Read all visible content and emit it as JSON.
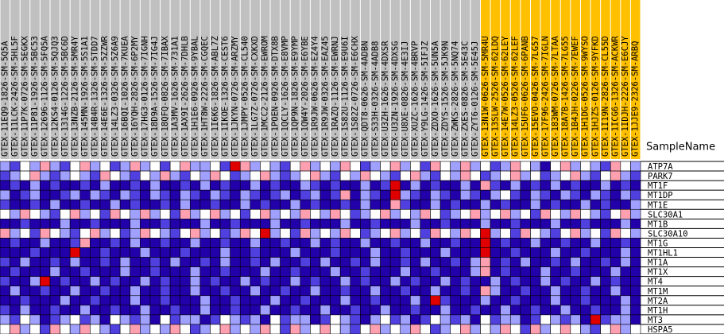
{
  "heatmap": {
    "row_header": "SampleName",
    "groups": [
      {
        "color": "#c0c0c0",
        "samples": [
          "GTEX-11EQ9-1826-SM-5Q5A",
          "GTEX-11LCK-2426-SM-5HL5F",
          "GTEX-11P7K-0726-SM-5EGKX",
          "GTEX-11P81-1926-SM-5BC53",
          "GTEX-12696-1126-SM-5FQ5A",
          "GTEX-12KS4-0126-SM-5QJQ3",
          "GTEX-1314G-1226-SM-5BC6D",
          "GTEX-13NZB-2126-SM-5MR4Y",
          "GTEX-145MN-1926-SM-5S1A1",
          "GTEX-14B4R-1326-SM-5TDD7",
          "GTEX-14E6E-1326-SM-5ZZWR",
          "GTEX-14LZ3-0326-SM-5Z6A9",
          "GTEX-16BQI-1026-SM-7KUEA",
          "GTEX-16YQH-2826-SM-6P2MY",
          "GTEX-17HG3-0126-SM-7IGNH",
          "GTEX-18D9A-1526-SM-7IG4J",
          "GTEX-18QFQ-0826-SM-7IBAX",
          "GTEX-1A3MV-1626-SM-731A1",
          "GTEX-1AX9I-2626-SM-7DHLB",
          "GTEX-1H1E6-0926-SM-9YBAL",
          "GTEX-1HT8W-2226-SM-CGQEC",
          "GTEX-1I6K6-1826-SM-ABL7Z",
          "GTEX-1IKOE-1326-SM-CEST6",
          "GTEX-1JKYN-0726-SM-ARZMY",
          "GTEX-1JMPY-0526-SM-CL540",
          "GTEX-1LG7Z-0726-SM-CXKXD",
          "GTEX-1MCC2-2126-SM-EWROM",
          "GTEX-1POEN-0926-SM-DTX8B",
          "GTEX-1QCLY-1626-SM-E8VMP",
          "GTEX-1QP9N-1826-SM-E9YMP",
          "GTEX-1QW4Y-2026-SM-E6YBE",
          "GTEX-1R9JW-0626-SM-EZ4Y4",
          "GTEX-1R9JW-0326-SM-EAZ45",
          "GTEX-1RAZQ-1126-SM-EWRNJ",
          "GTEX-1S82U-1126-SM-E9U6I",
          "GTEX-1S82Z-0726-SM-E6CHX",
          "GTEX-QDT8-0626-SM-4ADBN",
          "GTEX-S33H-0326-SM-4ADB8",
          "GTEX-U3ZH-1626-SM-4DXSR",
          "GTEX-U3ZN-1926-SM-4DXSG",
          "GTEX-U8XE-0826-SM-4E3IJ",
          "GTEX-XUZC-1626-SM-4BRVP",
          "GTEX-Y9LG-1426-SM-5IFJZ",
          "GTEX-ZDXO-1626-SM-5UN5A",
          "GTEX-ZDYS-1526-SM-5JK9N",
          "GTEX-ZWKS-2826-SM-5NQ74",
          "GTEX-ZXES-0826-SM-5E43C",
          "GTEX-ZYT6-0126-SM-5E45J"
        ]
      },
      {
        "color": "#ffc000",
        "samples": [
          "GTEX-13N1W-0626-SM-5MR4U",
          "GTEX-13SLW-2526-SM-62LDQ",
          "GTEX-14E7W-0526-SM-62LEY",
          "GTEX-14LZ3-0526-SM-62LEF",
          "GTEX-15UF6-0626-SM-6PANB",
          "GTEX-15EVO-0426-SM-7LG57",
          "GTEX-17F96-2426-SM-7IGLN",
          "GTEX-183WM-0726-SM-7LTAA",
          "GTEX-18A7B-1426-SM-7LG55",
          "GTEX-1B4JH-0226-SM-7EWEF",
          "GTEX-1H1DG-0526-SM-9WYSO",
          "GTEX-1HJZS-0126-SM-9YFKD",
          "GTEX-1I19N-2826-SM-CL55D",
          "GTEX-1ICG6-1326-SM-ACKWR",
          "GTEX-1IDJH-2226-SM-E6CJY",
          "GTEX-1JJE9-2326-SM-ARBQ"
        ]
      }
    ],
    "genes": [
      "ATP7A",
      "PARK7",
      "MT1F",
      "MT1DP",
      "MT1E",
      "SLC30A1",
      "MT1B",
      "SLC30A10",
      "MT1G",
      "MT1HL1",
      "MT1A",
      "MT1X",
      "MT4",
      "MT1M",
      "MT2A",
      "MT1H",
      "MT3",
      "HSPA5"
    ],
    "color_stops": [
      {
        "value": -3,
        "color": "#2200aa"
      },
      {
        "value": -2,
        "color": "#5040e0"
      },
      {
        "value": -1,
        "color": "#a0a0ff"
      },
      {
        "value": 0,
        "color": "#ffffff"
      },
      {
        "value": 1,
        "color": "#ffa0b0"
      },
      {
        "value": 2,
        "color": "#e00000"
      }
    ],
    "values": [
      [
        -1,
        -2,
        0,
        -1,
        1,
        -1,
        -2,
        0,
        1,
        -1,
        0,
        -2,
        -1,
        1,
        -1,
        0,
        -2,
        0,
        1,
        -1,
        -1,
        0,
        -2,
        2,
        1,
        -1,
        0,
        -1,
        -2,
        0,
        1,
        -1,
        0,
        -1,
        1,
        0,
        -2,
        -1,
        0,
        1,
        -1,
        0,
        -2,
        1,
        0,
        -1,
        1,
        -1,
        0,
        -2,
        -1,
        1,
        0,
        -1,
        -3,
        0,
        1,
        -1,
        0,
        -1,
        -2,
        1,
        0,
        -1
      ],
      [
        -2,
        -1,
        0,
        1,
        -1,
        -2,
        -1,
        0,
        -1,
        -2,
        1,
        0,
        -1,
        -2,
        0,
        -1,
        1,
        -1,
        -2,
        0,
        -1,
        1,
        0,
        -2,
        -1,
        0,
        1,
        -1,
        -2,
        -1,
        0,
        1,
        -1,
        -2,
        0,
        -1,
        1,
        0,
        -1,
        -2,
        0,
        1,
        -1,
        -2,
        0,
        -1,
        1,
        0,
        -2,
        -1,
        0,
        1,
        -1,
        0,
        -2,
        -1,
        0,
        1,
        -1,
        -2,
        0,
        1,
        -1,
        -2
      ],
      [
        -3,
        -2,
        -3,
        -1,
        -3,
        -2,
        -3,
        -3,
        -2,
        -3,
        -1,
        -3,
        -3,
        -2,
        -3,
        -1,
        -3,
        -3,
        -2,
        -3,
        -1,
        -3,
        -2,
        -3,
        -3,
        -1,
        -3,
        -2,
        -3,
        -3,
        -1,
        -2,
        -3,
        -2,
        -3,
        -3,
        -1,
        -3,
        -2,
        2,
        -3,
        -1,
        -3,
        -2,
        -3,
        -3,
        -1,
        -3,
        1,
        -2,
        -3,
        -1,
        -3,
        -2,
        -3,
        -1,
        -3,
        -2,
        -3,
        -3,
        -1,
        -3,
        -2,
        -3
      ],
      [
        -1,
        -3,
        -2,
        -1,
        -3,
        -3,
        -2,
        -1,
        -3,
        -1,
        -2,
        -3,
        -1,
        -2,
        -3,
        -1,
        -2,
        -3,
        -1,
        -2,
        -3,
        -1,
        -2,
        -3,
        -1,
        -2,
        -3,
        -2,
        -1,
        -3,
        -2,
        -1,
        -3,
        -2,
        1,
        -3,
        -1,
        -2,
        -3,
        2,
        -1,
        -2,
        -3,
        -1,
        -2,
        -3,
        -1,
        -2,
        -3,
        -1,
        0,
        -2,
        -3,
        -1,
        -2,
        -3,
        -1,
        -2,
        -3,
        -1,
        -2,
        -3,
        -1,
        -2
      ],
      [
        -2,
        -3,
        -3,
        -2,
        -3,
        -1,
        -3,
        -3,
        -2,
        -3,
        -3,
        -1,
        -3,
        -2,
        -3,
        -3,
        -2,
        -3,
        -1,
        -3,
        -3,
        -2,
        -3,
        -3,
        -1,
        -3,
        -2,
        -3,
        -3,
        -1,
        -3,
        -2,
        -3,
        -3,
        -2,
        -3,
        -1,
        -3,
        -3,
        1,
        -2,
        -3,
        -3,
        -1,
        -3,
        -2,
        -3,
        -3,
        -1,
        -3,
        -2,
        -3,
        -3,
        -1,
        -3,
        -2,
        -3,
        -3,
        -1,
        -3,
        -2,
        -3,
        -3,
        -1
      ],
      [
        0,
        -1,
        1,
        0,
        -1,
        -2,
        0,
        1,
        -1,
        0,
        -2,
        1,
        0,
        -1,
        1,
        -1,
        0,
        -2,
        1,
        -1,
        0,
        1,
        -1,
        0,
        -2,
        0,
        1,
        -1,
        0,
        -1,
        1,
        0,
        -1,
        1,
        0,
        -2,
        -1,
        0,
        1,
        -1,
        0,
        -1,
        1,
        0,
        -2,
        -1,
        0,
        1,
        -1,
        0,
        1,
        -1,
        0,
        -2,
        1,
        0,
        -1,
        1,
        0,
        -1,
        -2,
        0,
        1,
        -1
      ],
      [
        -3,
        -3,
        -2,
        -3,
        -3,
        -3,
        -1,
        -3,
        -3,
        -2,
        -3,
        -3,
        -3,
        -1,
        -3,
        -3,
        -2,
        -3,
        -3,
        -3,
        -1,
        -3,
        -3,
        -2,
        -3,
        -3,
        -3,
        -1,
        -3,
        -3,
        -2,
        -3,
        -3,
        -3,
        -1,
        -3,
        -3,
        -2,
        -3,
        -3,
        -3,
        -1,
        -3,
        -3,
        -2,
        -3,
        -3,
        -3,
        -1,
        -3,
        -3,
        -2,
        -3,
        -3,
        -3,
        -1,
        -3,
        -3,
        -2,
        -3,
        -3,
        -3,
        -1,
        -3
      ],
      [
        1,
        -1,
        0,
        -2,
        1,
        0,
        -1,
        -2,
        0,
        1,
        -1,
        0,
        -2,
        -1,
        1,
        0,
        -1,
        -2,
        0,
        1,
        -1,
        0,
        -2,
        -1,
        1,
        0,
        2,
        -1,
        0,
        -2,
        1,
        -1,
        0,
        -1,
        1,
        0,
        -2,
        -1,
        0,
        1,
        -1,
        0,
        -2,
        1,
        0,
        -1,
        1,
        0,
        2,
        -1,
        0,
        -2,
        1,
        0,
        -1,
        -2,
        0,
        1,
        -1,
        0,
        -2,
        1,
        0,
        -1
      ],
      [
        -3,
        -2,
        -3,
        -3,
        -1,
        -3,
        -3,
        -2,
        1,
        -3,
        -3,
        -2,
        -3,
        -1,
        -3,
        -3,
        -2,
        -3,
        -3,
        -1,
        -3,
        -3,
        -2,
        -3,
        -3,
        -1,
        -3,
        -3,
        -2,
        -3,
        -3,
        -1,
        -3,
        -2,
        -3,
        -3,
        -1,
        -3,
        -3,
        -2,
        -3,
        -3,
        -1,
        -3,
        -3,
        -2,
        -3,
        -3,
        2,
        -3,
        -2,
        -3,
        -3,
        -1,
        -3,
        -3,
        -2,
        -3,
        -3,
        -1,
        -3,
        -3,
        -2,
        -3
      ],
      [
        -3,
        -3,
        -3,
        -2,
        -3,
        -3,
        -3,
        2,
        -3,
        -3,
        -2,
        -3,
        -3,
        -3,
        -1,
        -3,
        -3,
        -3,
        -2,
        -3,
        -3,
        -3,
        -1,
        -3,
        -3,
        -2,
        -3,
        -3,
        -3,
        -1,
        -3,
        -3,
        -3,
        -2,
        -3,
        -3,
        -3,
        -1,
        -3,
        -3,
        -2,
        -3,
        -3,
        -3,
        -1,
        -3,
        -3,
        -3,
        2,
        -3,
        -3,
        -2,
        -3,
        -3,
        -3,
        -1,
        -3,
        -3,
        -2,
        -3,
        -3,
        -3,
        -1,
        -3
      ],
      [
        -2,
        -3,
        -1,
        -3,
        -3,
        -2,
        -3,
        -1,
        -3,
        -3,
        -2,
        -3,
        -1,
        -3,
        -3,
        -2,
        -3,
        -1,
        -3,
        -3,
        -2,
        -3,
        -1,
        -3,
        -3,
        -2,
        -3,
        -1,
        -3,
        -3,
        -2,
        -3,
        -1,
        -3,
        -3,
        -2,
        -3,
        -1,
        -3,
        -3,
        -2,
        -3,
        -1,
        -3,
        -3,
        -2,
        -3,
        -1,
        1,
        -3,
        -2,
        -3,
        -1,
        -3,
        -3,
        -2,
        -3,
        -1,
        -3,
        -3,
        -2,
        -3,
        -1,
        -3
      ],
      [
        -3,
        -2,
        -3,
        -3,
        -3,
        -1,
        -3,
        -3,
        -2,
        -3,
        -3,
        -3,
        -1,
        -3,
        -3,
        -2,
        -3,
        -3,
        -3,
        -1,
        -3,
        -3,
        -2,
        -3,
        -3,
        -3,
        -1,
        -3,
        -3,
        -2,
        -3,
        -3,
        -3,
        -1,
        -3,
        -3,
        -2,
        -3,
        -3,
        -3,
        -1,
        -3,
        -3,
        -2,
        -3,
        -3,
        -3,
        -1,
        1,
        -3,
        -2,
        -3,
        -3,
        -3,
        -1,
        -3,
        -3,
        -2,
        -3,
        -3,
        -3,
        -1,
        -3,
        -3
      ],
      [
        -2,
        -3,
        -3,
        -1,
        2,
        -3,
        -2,
        -3,
        -3,
        -1,
        -3,
        -2,
        -3,
        -3,
        -1,
        -3,
        -2,
        -3,
        -3,
        -1,
        -3,
        -2,
        -3,
        -3,
        -1,
        -3,
        -2,
        -3,
        -3,
        -1,
        -3,
        -2,
        -3,
        -3,
        -1,
        -3,
        -2,
        -3,
        -3,
        -1,
        -3,
        -2,
        -3,
        -3,
        -1,
        -3,
        -2,
        -3,
        -3,
        -1,
        -3,
        -2,
        -3,
        -3,
        -1,
        -3,
        -2,
        -3,
        -3,
        -1,
        -3,
        -2,
        -3,
        -3
      ],
      [
        -3,
        -1,
        -3,
        -3,
        -2,
        -3,
        -3,
        -1,
        -3,
        -3,
        -2,
        -3,
        -3,
        -1,
        -3,
        -3,
        -2,
        -3,
        -3,
        -1,
        -3,
        -3,
        -2,
        -3,
        -3,
        -1,
        -3,
        -3,
        -2,
        -3,
        -3,
        -1,
        -3,
        -3,
        -2,
        -3,
        -3,
        -1,
        -3,
        -3,
        -2,
        -3,
        -3,
        -1,
        -3,
        -3,
        -2,
        -3,
        1,
        -1,
        -3,
        -3,
        -2,
        -3,
        -3,
        -1,
        -3,
        -3,
        -2,
        -3,
        -3,
        -1,
        -3,
        -3
      ],
      [
        -3,
        -3,
        -2,
        -3,
        -3,
        -3,
        -1,
        -3,
        -3,
        -2,
        -3,
        -3,
        -3,
        -1,
        -3,
        -3,
        -2,
        -3,
        -3,
        -3,
        -1,
        -3,
        -3,
        -2,
        -3,
        -3,
        -3,
        -1,
        -3,
        -3,
        -2,
        -3,
        -3,
        -3,
        -1,
        -3,
        -3,
        -2,
        -3,
        -3,
        -3,
        -1,
        -3,
        2,
        -2,
        -3,
        -3,
        -3,
        -1,
        -3,
        -3,
        -2,
        -3,
        -3,
        -3,
        -1,
        -3,
        -3,
        -2,
        -3,
        -3,
        -3,
        -1,
        -3
      ],
      [
        -2,
        -3,
        -1,
        -3,
        -3,
        -2,
        -3,
        -3,
        -1,
        -3,
        -3,
        -2,
        -3,
        -3,
        -1,
        -3,
        -3,
        -2,
        -3,
        -3,
        -1,
        -3,
        -3,
        -2,
        -3,
        -3,
        -1,
        -3,
        -3,
        -2,
        -3,
        -3,
        -1,
        -3,
        -3,
        -2,
        -3,
        -3,
        -1,
        -3,
        -3,
        -2,
        -3,
        -3,
        -1,
        -3,
        -3,
        -2,
        -3,
        -3,
        -1,
        -3,
        -3,
        -2,
        -3,
        -3,
        -1,
        -3,
        -3,
        -2,
        -3,
        -3,
        -1,
        -3
      ],
      [
        -1,
        -2,
        0,
        -1,
        -3,
        -2,
        -1,
        0,
        -2,
        -1,
        -3,
        0,
        -1,
        -2,
        -1,
        -3,
        0,
        -2,
        -1,
        -1,
        -3,
        -2,
        0,
        -1,
        -2,
        -1,
        -3,
        0,
        -2,
        -1,
        -1,
        -3,
        -2,
        0,
        -1,
        -2,
        -3,
        -1,
        0,
        -2,
        -1,
        -3,
        -2,
        0,
        -1,
        -2,
        -1,
        -3,
        0,
        -2,
        -1,
        -1,
        -3,
        -2,
        0,
        -1,
        -2,
        -1,
        -3,
        2,
        -2,
        -1,
        -1,
        -3
      ],
      [
        0,
        1,
        -1,
        0,
        -2,
        1,
        0,
        -1,
        1,
        0,
        -1,
        -2,
        0,
        1,
        -1,
        0,
        -1,
        1,
        0,
        -2,
        -1,
        0,
        1,
        -1,
        0,
        -1,
        1,
        0,
        -2,
        1,
        -1,
        0,
        1,
        0,
        -1,
        -2,
        0,
        1,
        -1,
        0,
        -1,
        1,
        0,
        -2,
        -1,
        0,
        1,
        -1,
        0,
        -1,
        1,
        0,
        -2,
        1,
        -1,
        0,
        1,
        0,
        -1,
        -2,
        0,
        1,
        -1,
        0
      ]
    ]
  }
}
